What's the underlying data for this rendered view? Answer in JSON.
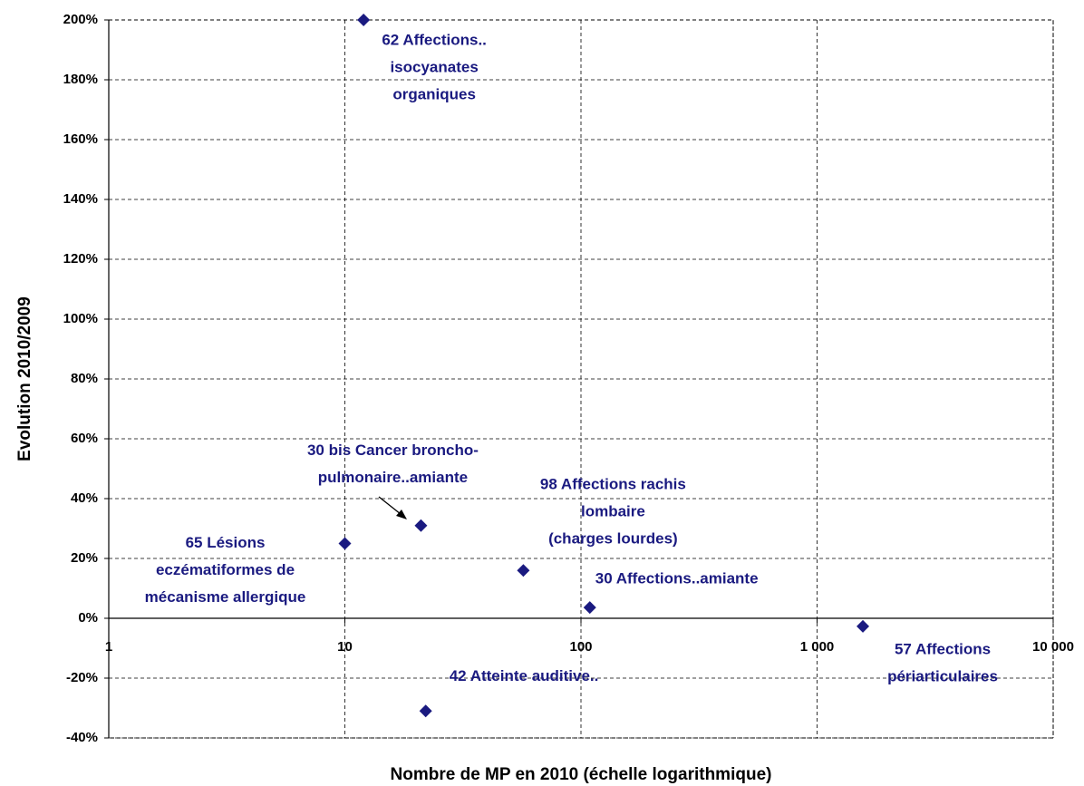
{
  "chart_data": {
    "type": "scatter",
    "x_label": "Nombre de MP en 2010 (échelle logarithmique)",
    "y_label": "Evolution 2010/2009",
    "xscale": "log",
    "grid": true,
    "color": "#1a1a80",
    "xlim": [
      1,
      10000
    ],
    "xticks": [
      1,
      10,
      100,
      {
        "value": 1000,
        "label": "1 000"
      },
      {
        "value": 10000,
        "label": "10 000"
      }
    ],
    "ylim": [
      -40,
      200
    ],
    "yticks": [
      {
        "value": -40,
        "label": "-40%"
      },
      {
        "value": -20,
        "label": "-20%"
      },
      {
        "value": 0,
        "label": "0%"
      },
      {
        "value": 20,
        "label": "20%"
      },
      {
        "value": 40,
        "label": "40%"
      },
      {
        "value": 60,
        "label": "60%"
      },
      {
        "value": 80,
        "label": "80%"
      },
      {
        "value": 100,
        "label": "100%"
      },
      {
        "value": 120,
        "label": "120%"
      },
      {
        "value": 140,
        "label": "140%"
      },
      {
        "value": 160,
        "label": "160%"
      },
      {
        "value": 180,
        "label": "180%"
      },
      {
        "value": 200,
        "label": "200%"
      }
    ],
    "points": [
      {
        "x": 12,
        "y": 200,
        "label": [
          "62 Affections..",
          "isocyanates",
          "organiques"
        ]
      },
      {
        "x": 10,
        "y": 25,
        "label": [
          "65 Lésions",
          "eczématiformes de",
          "mécanisme allergique"
        ]
      },
      {
        "x": 21,
        "y": 31,
        "label": [
          "30 bis Cancer broncho-",
          "pulmonaire..amiante"
        ]
      },
      {
        "x": 57,
        "y": 16,
        "label": [
          "98 Affections rachis",
          "lombaire",
          "(charges lourdes)"
        ]
      },
      {
        "x": 109,
        "y": 3.6,
        "label": [
          "30 Affections..amiante"
        ]
      },
      {
        "x": 1563,
        "y": -2.7,
        "label": [
          "57 Affections",
          "périarticulaires"
        ]
      },
      {
        "x": 22,
        "y": -31,
        "label": [
          "42 Atteinte auditive.."
        ]
      }
    ]
  }
}
